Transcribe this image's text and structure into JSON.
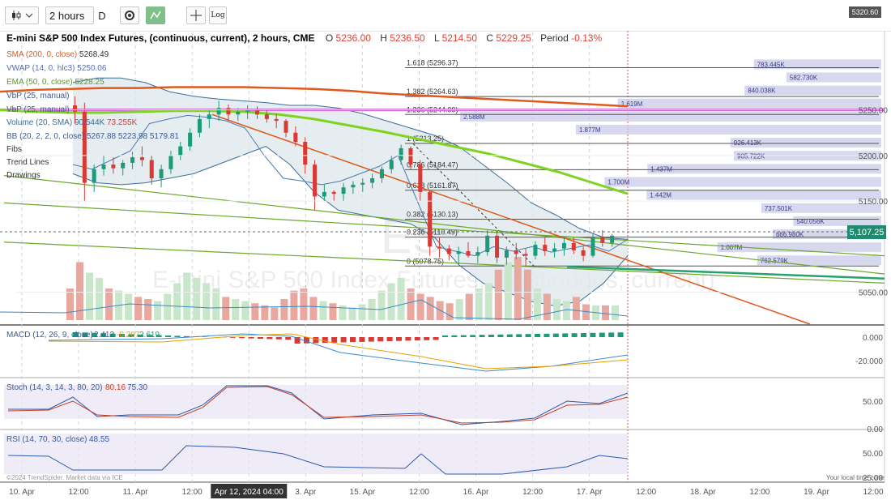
{
  "toolbar": {
    "chart_type_icon": "candlestick-icon",
    "interval": "2 hours",
    "period_letter": "D",
    "settings_icon": "gear-icon",
    "draw_icon": "trend-draw-icon",
    "crosshair_icon": "crosshair-icon",
    "log_label": "Log"
  },
  "title": {
    "name": "E-mini S&P 500 Index Futures, (continuous, current), 2 hours, CME",
    "o_label": "O",
    "o": "5236.00",
    "h_label": "H",
    "h": "5236.50",
    "l_label": "L",
    "l": "5214.50",
    "c_label": "C",
    "c": "5229.25",
    "period_label": "Period",
    "period": "-0.13%"
  },
  "legend": {
    "sma": "SMA (200, 0, close)",
    "sma_val": "5268.49",
    "vwap": "VWAP (14, 0, hlc3)",
    "vwap_val": "5250.06",
    "ema": "EMA (50, 0, close)",
    "ema_val": "5228.25",
    "vbp1": "VbP (25, manual)",
    "vbp2": "VbP (25, manual)",
    "volume": "Volume (20, SMA)",
    "volume_val": "90.544K",
    "volume_val2": "73.255K",
    "bb": "BB (20, 2, 2, 0, close)",
    "bb_val": "5267.88",
    "bb_val2": "5223.98",
    "bb_val3": "5179.81",
    "fibs": "Fibs",
    "trend": "Trend Lines",
    "drawings": "Drawings"
  },
  "watermark": {
    "symbol": "ES1",
    "name": "E-mini S&P 500 Index Futures, (continuous, current)"
  },
  "colors": {
    "up": "#1b9b7a",
    "down": "#d93a34",
    "sma": "#e0581c",
    "ema": "#7ed321",
    "vwap": "#c45ad0",
    "bb_fill": "#dfe8ee",
    "bb_line": "#3a6e9a",
    "vbp": "#c9c9e8",
    "vbp_text": "#3a3a8a"
  },
  "chart_data": [
    {
      "type": "candlestick",
      "title": "E-mini S&P 500 Index Futures, (continuous, current), 2 hours, CME",
      "ylim": [
        5015,
        5335
      ],
      "y_ticks": [
        "5050.00",
        "5150.00",
        "5200.00",
        "5250.00"
      ],
      "x_labels": [
        "10. Apr",
        "12:00",
        "11. Apr",
        "12:00",
        "Apr 12, 2024 04:00",
        "3. Apr",
        "15. Apr",
        "12:00",
        "16. Apr",
        "12:00",
        "17. Apr",
        "12:00",
        "18. Apr",
        "12:00",
        "19. Apr",
        "12:00"
      ],
      "last_price": "5,107.25",
      "top_price": "5320.60",
      "candles": [
        [
          5255,
          5265,
          5235,
          5248
        ],
        [
          5248,
          5258,
          5150,
          5170
        ],
        [
          5170,
          5190,
          5160,
          5185
        ],
        [
          5185,
          5200,
          5178,
          5190
        ],
        [
          5190,
          5198,
          5180,
          5186
        ],
        [
          5186,
          5195,
          5178,
          5192
        ],
        [
          5192,
          5204,
          5185,
          5198
        ],
        [
          5198,
          5210,
          5188,
          5195
        ],
        [
          5195,
          5200,
          5168,
          5175
        ],
        [
          5175,
          5190,
          5165,
          5185
        ],
        [
          5185,
          5205,
          5180,
          5200
        ],
        [
          5200,
          5215,
          5195,
          5210
        ],
        [
          5210,
          5230,
          5205,
          5225
        ],
        [
          5225,
          5245,
          5220,
          5240
        ],
        [
          5240,
          5250,
          5230,
          5245
        ],
        [
          5245,
          5260,
          5238,
          5252
        ],
        [
          5252,
          5256,
          5238,
          5245
        ],
        [
          5245,
          5252,
          5238,
          5248
        ],
        [
          5248,
          5255,
          5240,
          5250
        ],
        [
          5250,
          5254,
          5240,
          5245
        ],
        [
          5245,
          5250,
          5236,
          5240
        ],
        [
          5240,
          5246,
          5230,
          5238
        ],
        [
          5238,
          5240,
          5220,
          5225
        ],
        [
          5225,
          5232,
          5210,
          5215
        ],
        [
          5215,
          5220,
          5180,
          5190
        ],
        [
          5190,
          5195,
          5140,
          5155
        ],
        [
          5155,
          5168,
          5150,
          5160
        ],
        [
          5160,
          5162,
          5150,
          5158
        ],
        [
          5158,
          5170,
          5150,
          5165
        ],
        [
          5165,
          5172,
          5158,
          5168
        ],
        [
          5168,
          5175,
          5160,
          5170
        ],
        [
          5170,
          5180,
          5164,
          5175
        ],
        [
          5175,
          5188,
          5170,
          5185
        ],
        [
          5185,
          5200,
          5180,
          5195
        ],
        [
          5195,
          5212,
          5190,
          5208
        ],
        [
          5208,
          5210,
          5185,
          5190
        ],
        [
          5190,
          5195,
          5150,
          5160
        ],
        [
          5160,
          5162,
          5090,
          5100
        ],
        [
          5100,
          5110,
          5088,
          5098
        ],
        [
          5098,
          5102,
          5085,
          5092
        ],
        [
          5092,
          5100,
          5080,
          5095
        ],
        [
          5095,
          5105,
          5088,
          5090
        ],
        [
          5090,
          5100,
          5082,
          5094
        ],
        [
          5094,
          5118,
          5090,
          5112
        ],
        [
          5112,
          5116,
          5082,
          5088
        ],
        [
          5088,
          5100,
          5080,
          5096
        ],
        [
          5096,
          5104,
          5086,
          5092
        ],
        [
          5092,
          5098,
          5078,
          5090
        ],
        [
          5090,
          5106,
          5086,
          5102
        ],
        [
          5102,
          5110,
          5090,
          5095
        ],
        [
          5095,
          5104,
          5088,
          5098
        ],
        [
          5098,
          5110,
          5090,
          5104
        ],
        [
          5104,
          5110,
          5092,
          5096
        ],
        [
          5096,
          5100,
          5084,
          5090
        ],
        [
          5090,
          5114,
          5088,
          5110
        ],
        [
          5110,
          5118,
          5100,
          5104
        ],
        [
          5104,
          5114,
          5100,
          5112
        ]
      ],
      "series": [
        {
          "name": "SMA 200",
          "values": [
            5270,
            5272,
            5273,
            5274,
            5274,
            5275,
            5275,
            5275,
            5274,
            5273,
            5271,
            5268,
            5266,
            5264,
            5262,
            5260,
            5258,
            5256,
            5254
          ]
        },
        {
          "name": "EMA 50",
          "values": [
            5250,
            5248,
            5247,
            5247,
            5248,
            5249,
            5249,
            5248,
            5245,
            5240,
            5233,
            5226,
            5218,
            5210,
            5202,
            5192,
            5182,
            5170,
            5158
          ]
        },
        {
          "name": "VWAP",
          "values": [
            5250,
            5250,
            5250,
            5250,
            5250
          ]
        },
        {
          "name": "BB upper",
          "values": [
            5280,
            5285,
            5285,
            5280,
            5270,
            5265,
            5262,
            5260,
            5258,
            5255,
            5255,
            5252,
            5246,
            5238,
            5230,
            5222,
            5210,
            5190,
            5170,
            5148,
            5135,
            5120,
            5110,
            5108
          ]
        },
        {
          "name": "BB lower",
          "values": [
            5180,
            5170,
            5168,
            5170,
            5175,
            5180,
            5190,
            5200,
            5210,
            5190,
            5160,
            5140,
            5135,
            5130,
            5125,
            5110,
            5080,
            5060,
            5050,
            5040,
            5035,
            5040,
            5060,
            5090
          ]
        },
        {
          "name": "Price line",
          "values": [
            5190,
            5185,
            5195,
            5205,
            5235,
            5240,
            5244,
            5242,
            5238,
            5230,
            5200,
            5175,
            5172,
            5168,
            5172,
            5180,
            5188,
            5200,
            5150,
            5100,
            5095,
            5090,
            5100,
            5095,
            5100,
            5094,
            5098,
            5102,
            5095,
            5108
          ]
        }
      ],
      "fib_levels": [
        {
          "label": "1.618 (5296.37)",
          "value": 5296.37
        },
        {
          "label": "1.382 (5264.63)",
          "value": 5264.63
        },
        {
          "label": "1.236 (5244.99)",
          "value": 5244.99
        },
        {
          "label": "1 (5213.25)",
          "value": 5213.25
        },
        {
          "label": "0.786 (5184.47)",
          "value": 5184.47
        },
        {
          "label": "0.618 (5161.87)",
          "value": 5161.87
        },
        {
          "label": "0.382 (5130.13)",
          "value": 5130.13
        },
        {
          "label": "0.236 (5110.49)",
          "value": 5110.49
        },
        {
          "label": "0 (5078.75)",
          "value": 5078.75
        }
      ],
      "volume_profile": [
        {
          "label": "783.445K",
          "value": 783.445
        },
        {
          "label": "582.730K",
          "value": 582.73
        },
        {
          "label": "840.038K",
          "value": 840.038
        },
        {
          "label": "1.619M",
          "value": 1619
        },
        {
          "label": "2.588M",
          "value": 2588
        },
        {
          "label": "1.877M",
          "value": 1877
        },
        {
          "label": "926.413K",
          "value": 926.413
        },
        {
          "label": "905.722K",
          "value": 905.722
        },
        {
          "label": "1.437M",
          "value": 1437
        },
        {
          "label": "1.700M",
          "value": 1700
        },
        {
          "label": "1.442M",
          "value": 1442
        },
        {
          "label": "737.501K",
          "value": 737.501
        },
        {
          "label": "540.056K",
          "value": 540.056
        },
        {
          "label": "666.980K",
          "value": 666.98
        },
        {
          "label": "1.007M",
          "value": 1007
        },
        {
          "label": "762.579K",
          "value": 762.579
        }
      ],
      "volume": [
        30,
        55,
        45,
        40,
        30,
        28,
        25,
        22,
        20,
        18,
        25,
        35,
        45,
        40,
        35,
        30,
        22,
        20,
        18,
        16,
        14,
        12,
        20,
        28,
        30,
        22,
        18,
        16,
        14,
        12,
        15,
        20,
        28,
        35,
        40,
        30,
        25,
        22,
        18,
        16,
        20,
        25,
        30,
        35,
        48,
        55,
        60,
        48,
        30,
        25,
        20,
        18,
        22,
        15,
        14,
        14,
        14
      ]
    },
    {
      "type": "line",
      "title": "MACD (12, 26, 9, close)",
      "values_text": [
        "2.412",
        "-0.207",
        "2.619"
      ],
      "y_ticks": [
        "0.000",
        "-20.000"
      ]
    },
    {
      "type": "line",
      "title": "Stoch (14, 3, 14, 3, 80, 20)",
      "values_text": [
        "80.16",
        "75.30"
      ],
      "y_ticks": [
        "50.00",
        "0.00"
      ]
    },
    {
      "type": "line",
      "title": "RSI (14, 70, 30, close)",
      "values_text": [
        "48.55"
      ],
      "y_ticks": [
        "50.00",
        "25.00"
      ]
    }
  ],
  "footer": {
    "credit": "©2024 TrendSpider. Market data via ICE",
    "local_time": "Your local time zone"
  }
}
